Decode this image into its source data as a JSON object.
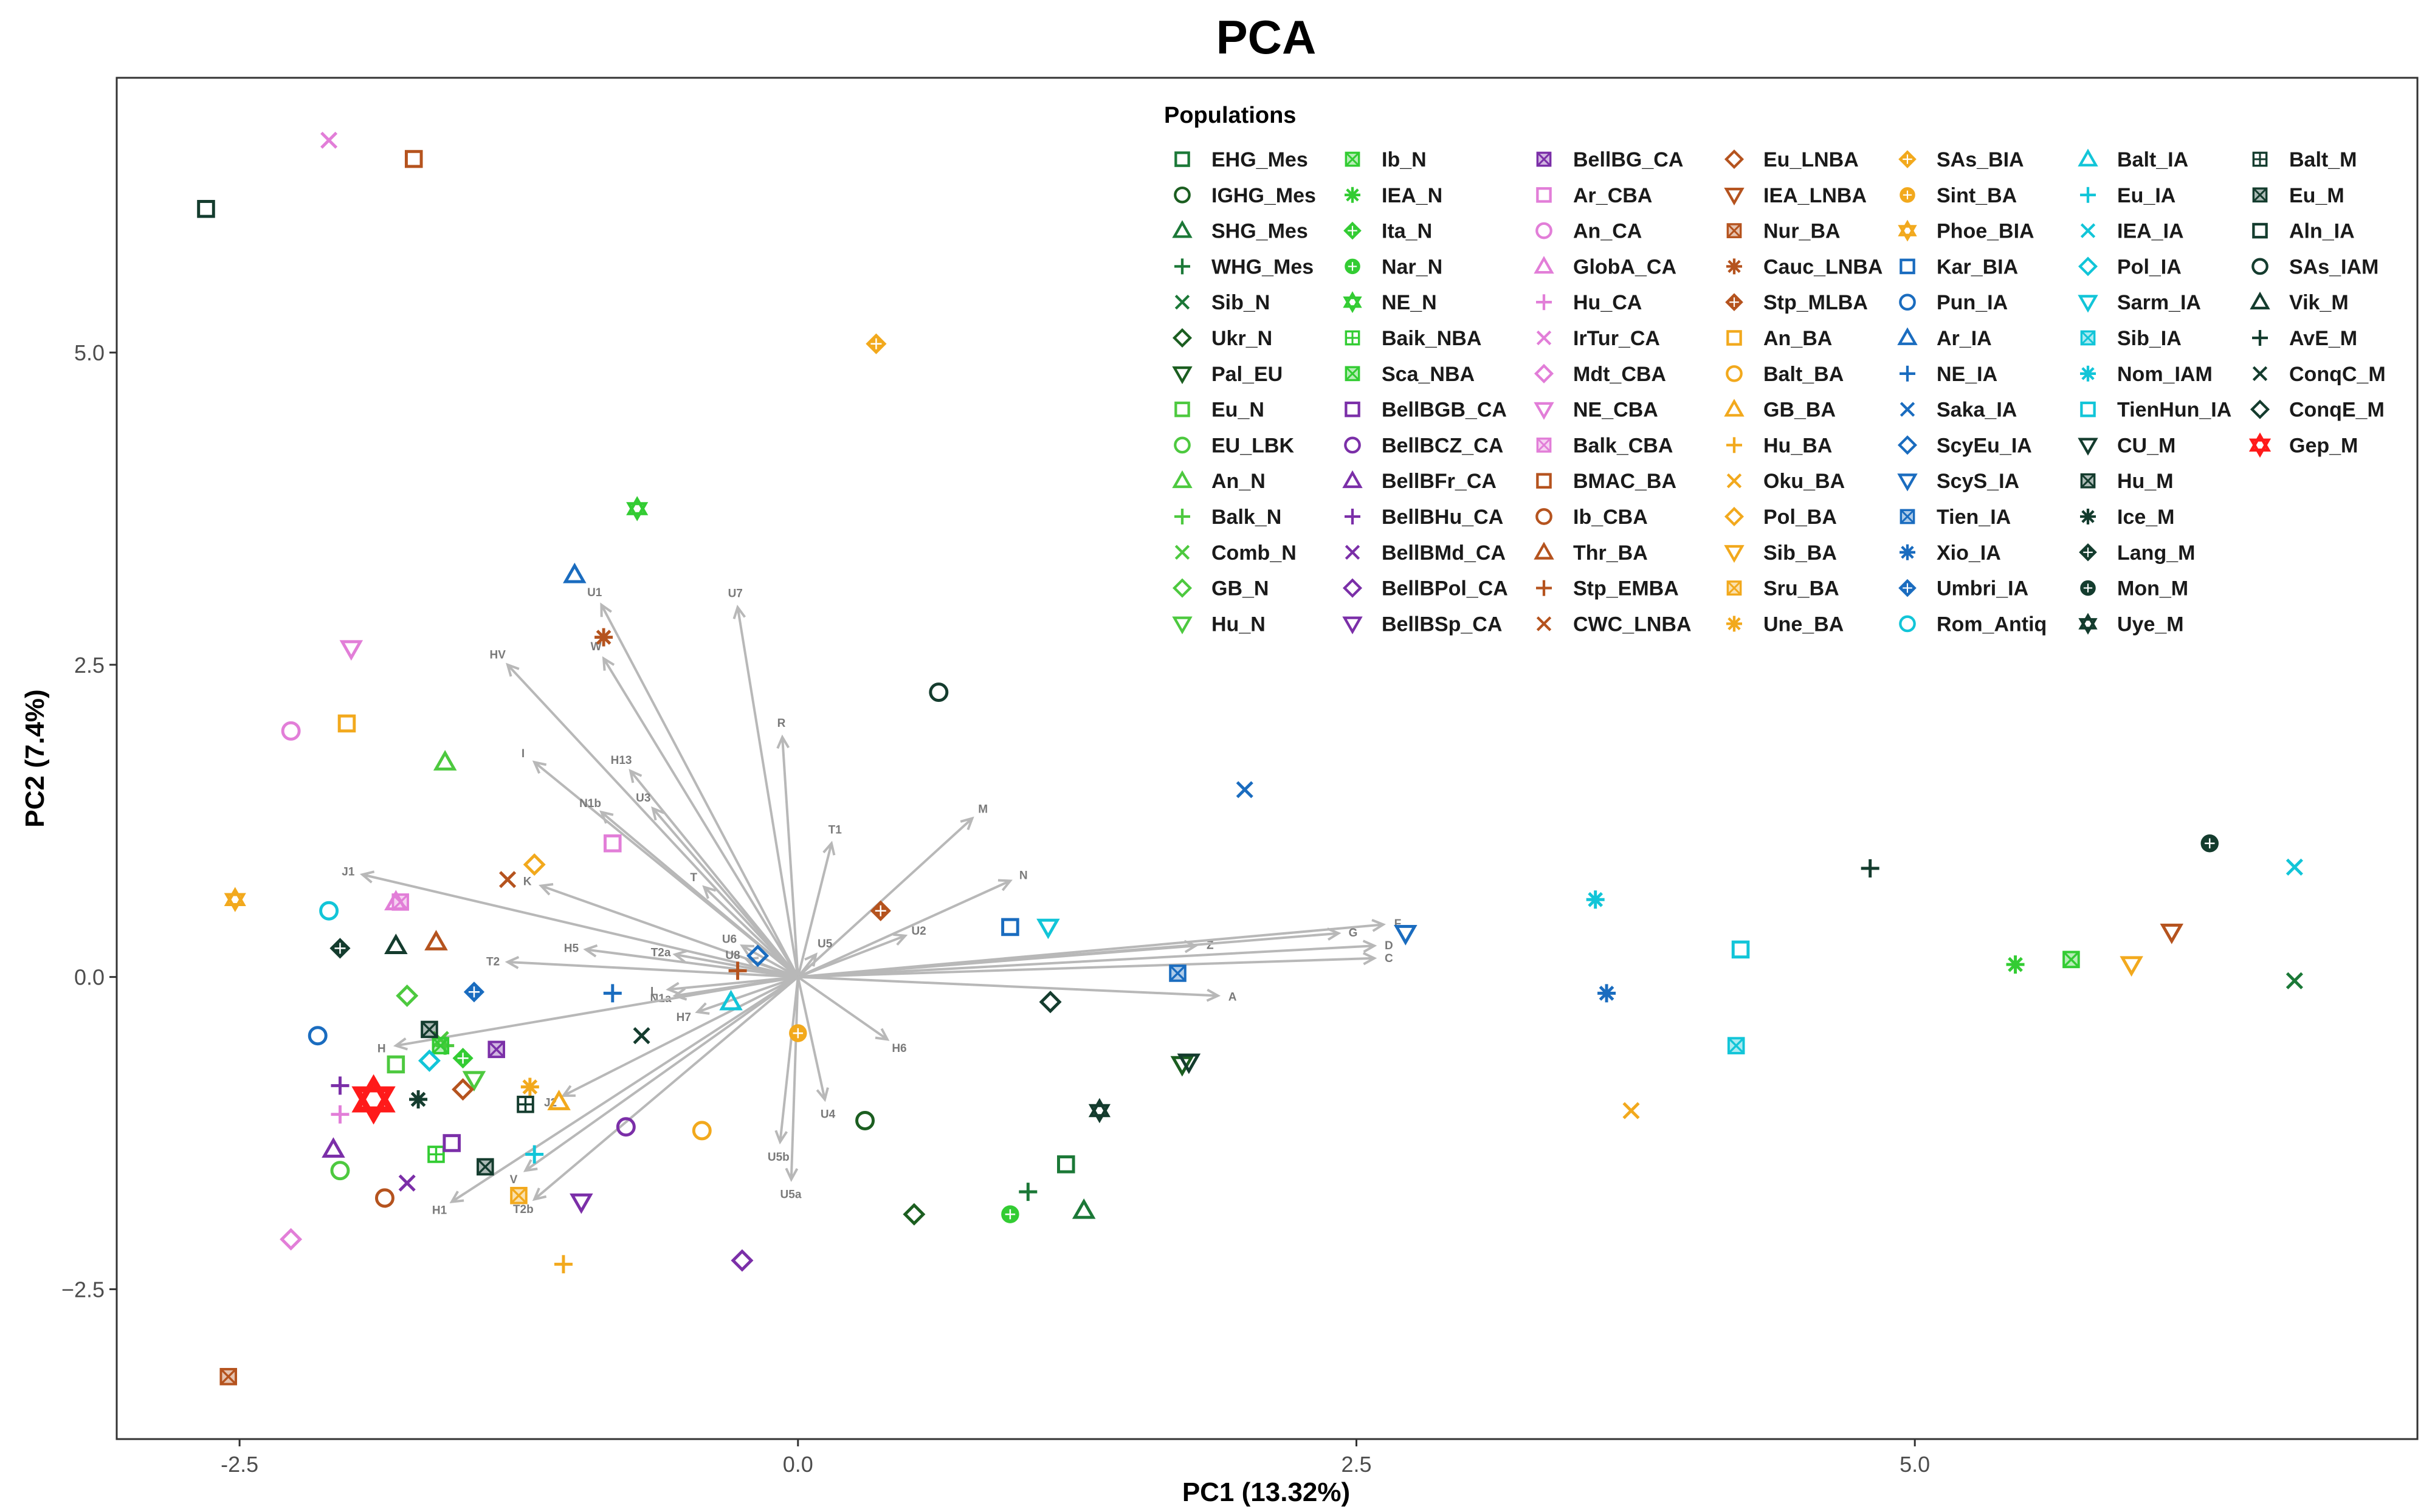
{
  "chart_data": {
    "type": "scatter",
    "title": "PCA",
    "xlabel": "PC1 (13.32%)",
    "ylabel": "PC2 (7.4%)",
    "xlim": [
      -3.05,
      7.25
    ],
    "ylim": [
      -3.7,
      7.2
    ],
    "xticks": [
      -2.5,
      0.0,
      2.5,
      5.0
    ],
    "xtick_labels": [
      "-2.5",
      "0.0",
      "2.5",
      "5.0"
    ],
    "yticks": [
      -2.5,
      0.0,
      2.5,
      5.0
    ],
    "ytick_labels": [
      "−2.5",
      "0.0",
      "2.5",
      "5.0"
    ],
    "legend_title": "Populations",
    "legend_position": "top-right",
    "series": [
      {
        "name": "EHG_Mes",
        "shape": "sq",
        "color": "#1b7837",
        "x": 1.2,
        "y": -1.5
      },
      {
        "name": "IGHG_Mes",
        "shape": "ci",
        "color": "#1b5e20",
        "x": 0.3,
        "y": -1.15
      },
      {
        "name": "SHG_Mes",
        "shape": "tu",
        "color": "#1b7837",
        "x": 1.28,
        "y": -1.87
      },
      {
        "name": "WHG_Mes",
        "shape": "pl",
        "color": "#1b7837",
        "x": 1.03,
        "y": -1.72
      },
      {
        "name": "Sib_N",
        "shape": "x",
        "color": "#1b7837",
        "x": 6.7,
        "y": -0.03
      },
      {
        "name": "Ukr_N",
        "shape": "di",
        "color": "#1b5e20",
        "x": 0.52,
        "y": -1.9
      },
      {
        "name": "Pal_EU",
        "shape": "td",
        "color": "#1b5e20",
        "x": 1.72,
        "y": -0.7
      },
      {
        "name": "Eu_N",
        "shape": "sq",
        "color": "#4dc93f",
        "x": -1.8,
        "y": -0.7
      },
      {
        "name": "EU_LBK",
        "shape": "ci",
        "color": "#4dc93f",
        "x": -2.05,
        "y": -1.55
      },
      {
        "name": "An_N",
        "shape": "tu",
        "color": "#4dc93f",
        "x": -1.58,
        "y": 1.72
      },
      {
        "name": "Balk_N",
        "shape": "pl",
        "color": "#4dc93f",
        "x": -1.58,
        "y": -0.55
      },
      {
        "name": "Comb_N",
        "shape": "x",
        "color": "#4dc93f",
        "x": -1.6,
        "y": -0.5
      },
      {
        "name": "GB_N",
        "shape": "di",
        "color": "#4dc93f",
        "x": -1.75,
        "y": -0.15
      },
      {
        "name": "Hu_N",
        "shape": "td",
        "color": "#4dc93f",
        "x": -1.45,
        "y": -0.82
      },
      {
        "name": "Ib_N",
        "shape": "sx",
        "color": "#33cc33",
        "x": 5.7,
        "y": 0.14
      },
      {
        "name": "IEA_N",
        "shape": "as",
        "color": "#33cc33",
        "x": 5.45,
        "y": 0.1
      },
      {
        "name": "Ita_N",
        "shape": "dd",
        "color": "#33cc33",
        "x": -1.5,
        "y": -0.65
      },
      {
        "name": "Nar_N",
        "shape": "co",
        "color": "#33cc33",
        "x": 0.95,
        "y": -1.9
      },
      {
        "name": "NE_N",
        "shape": "st",
        "color": "#33cc33",
        "x": -0.72,
        "y": 3.75
      },
      {
        "name": "Baik_NBA",
        "shape": "sp",
        "color": "#33cc33",
        "x": -1.62,
        "y": -1.42
      },
      {
        "name": "Sca_NBA",
        "shape": "sx",
        "color": "#33cc33",
        "x": -1.6,
        "y": -0.55
      },
      {
        "name": "BellBGB_CA",
        "shape": "sq",
        "color": "#7b2fa8",
        "x": -1.55,
        "y": -1.33
      },
      {
        "name": "BellBCZ_CA",
        "shape": "ci",
        "color": "#7b2fa8",
        "x": -0.77,
        "y": -1.2
      },
      {
        "name": "BellBFr_CA",
        "shape": "tu",
        "color": "#7b2fa8",
        "x": -2.08,
        "y": -1.38
      },
      {
        "name": "BellBHu_CA",
        "shape": "pl",
        "color": "#7b2fa8",
        "x": -2.05,
        "y": -0.87
      },
      {
        "name": "BellBMd_CA",
        "shape": "x",
        "color": "#7b2fa8",
        "x": -1.75,
        "y": -1.65
      },
      {
        "name": "BellBPol_CA",
        "shape": "di",
        "color": "#7b2fa8",
        "x": -0.25,
        "y": -2.27
      },
      {
        "name": "BellBSp_CA",
        "shape": "td",
        "color": "#7b2fa8",
        "x": -0.97,
        "y": -1.8
      },
      {
        "name": "BellBG_CA",
        "shape": "sx",
        "color": "#7b2fa8",
        "x": -1.35,
        "y": -0.58
      },
      {
        "name": "Ar_CBA",
        "shape": "sq",
        "color": "#e27ed8",
        "x": -0.83,
        "y": 1.07
      },
      {
        "name": "An_CA",
        "shape": "ci",
        "color": "#e27ed8",
        "x": -2.27,
        "y": 1.97
      },
      {
        "name": "GlobA_CA",
        "shape": "tu",
        "color": "#e27ed8",
        "x": -1.8,
        "y": 0.6
      },
      {
        "name": "Hu_CA",
        "shape": "pl",
        "color": "#e27ed8",
        "x": -2.05,
        "y": -1.1
      },
      {
        "name": "IrTur_CA",
        "shape": "x",
        "color": "#e27ed8",
        "x": -2.1,
        "y": 6.7
      },
      {
        "name": "Mdt_CBA",
        "shape": "di",
        "color": "#e27ed8",
        "x": -2.27,
        "y": -2.1
      },
      {
        "name": "NE_CBA",
        "shape": "td",
        "color": "#e27ed8",
        "x": -2.0,
        "y": 2.63
      },
      {
        "name": "Balk_CBA",
        "shape": "sx",
        "color": "#e27ed8",
        "x": -1.78,
        "y": 0.6
      },
      {
        "name": "BMAC_BA",
        "shape": "sq",
        "color": "#b5531e",
        "x": -1.72,
        "y": 6.55
      },
      {
        "name": "Ib_CBA",
        "shape": "ci",
        "color": "#b5531e",
        "x": -1.85,
        "y": -1.77
      },
      {
        "name": "Thr_BA",
        "shape": "tu",
        "color": "#b5531e",
        "x": -1.62,
        "y": 0.28
      },
      {
        "name": "Stp_EMBA",
        "shape": "pl",
        "color": "#b5531e",
        "x": -0.27,
        "y": 0.05
      },
      {
        "name": "CWC_LNBA",
        "shape": "x",
        "color": "#b5531e",
        "x": -1.3,
        "y": 0.78
      },
      {
        "name": "Eu_LNBA",
        "shape": "di",
        "color": "#b5531e",
        "x": -1.5,
        "y": -0.9
      },
      {
        "name": "IEA_LNBA",
        "shape": "td",
        "color": "#b5531e",
        "x": 6.15,
        "y": 0.36
      },
      {
        "name": "Nur_BA",
        "shape": "sx",
        "color": "#b5531e",
        "x": -2.55,
        "y": -3.2
      },
      {
        "name": "Cauc_LNBA",
        "shape": "as",
        "color": "#b5531e",
        "x": -0.87,
        "y": 2.72
      },
      {
        "name": "Stp_MLBA",
        "shape": "dd",
        "color": "#b5531e",
        "x": 0.37,
        "y": 0.53
      },
      {
        "name": "An_BA",
        "shape": "sq",
        "color": "#f2a91d",
        "x": -2.02,
        "y": 2.03
      },
      {
        "name": "Balt_BA",
        "shape": "ci",
        "color": "#f2a91d",
        "x": -0.43,
        "y": -1.23
      },
      {
        "name": "GB_BA",
        "shape": "tu",
        "color": "#f2a91d",
        "x": -1.07,
        "y": -1.0
      },
      {
        "name": "Hu_BA",
        "shape": "pl",
        "color": "#f2a91d",
        "x": -1.05,
        "y": -2.3
      },
      {
        "name": "Oku_BA",
        "shape": "x",
        "color": "#f2a91d",
        "x": 3.73,
        "y": -1.07
      },
      {
        "name": "Pol_BA",
        "shape": "di",
        "color": "#f2a91d",
        "x": -1.18,
        "y": 0.9
      },
      {
        "name": "Sib_BA",
        "shape": "td",
        "color": "#f2a91d",
        "x": 5.97,
        "y": 0.1
      },
      {
        "name": "Sru_BA",
        "shape": "sx",
        "color": "#f2a91d",
        "x": -1.25,
        "y": -1.75
      },
      {
        "name": "Une_BA",
        "shape": "as",
        "color": "#f2a91d",
        "x": -1.2,
        "y": -0.88
      },
      {
        "name": "SAs_BIA",
        "shape": "dd",
        "color": "#f2a91d",
        "x": 0.35,
        "y": 5.07
      },
      {
        "name": "Sint_BA",
        "shape": "co",
        "color": "#f2a91d",
        "x": 0.0,
        "y": -0.45
      },
      {
        "name": "Phoe_BIA",
        "shape": "st",
        "color": "#f2a91d",
        "x": -2.52,
        "y": 0.62
      },
      {
        "name": "Kar_BIA",
        "shape": "sq",
        "color": "#1a6cbf",
        "x": 0.95,
        "y": 0.4
      },
      {
        "name": "Pun_IA",
        "shape": "ci",
        "color": "#1a6cbf",
        "x": -2.15,
        "y": -0.47
      },
      {
        "name": "Ar_IA",
        "shape": "tu",
        "color": "#1a6cbf",
        "x": -1.0,
        "y": 3.22
      },
      {
        "name": "NE_IA",
        "shape": "pl",
        "color": "#1a6cbf",
        "x": -0.83,
        "y": -0.13
      },
      {
        "name": "Saka_IA",
        "shape": "x",
        "color": "#1a6cbf",
        "x": 2.0,
        "y": 1.5
      },
      {
        "name": "ScyEu_IA",
        "shape": "di",
        "color": "#1a6cbf",
        "x": -0.18,
        "y": 0.17
      },
      {
        "name": "ScyS_IA",
        "shape": "td",
        "color": "#1a6cbf",
        "x": 2.72,
        "y": 0.35
      },
      {
        "name": "Tien_IA",
        "shape": "sx",
        "color": "#1a6cbf",
        "x": 1.7,
        "y": 0.03
      },
      {
        "name": "Xio_IA",
        "shape": "as",
        "color": "#1a6cbf",
        "x": 3.62,
        "y": -0.13
      },
      {
        "name": "Umbri_IA",
        "shape": "dd",
        "color": "#1a6cbf",
        "x": -1.45,
        "y": -0.12
      },
      {
        "name": "Rom_Antiq",
        "shape": "ci",
        "color": "#12c5d8",
        "x": -2.1,
        "y": 0.53
      },
      {
        "name": "Balt_IA",
        "shape": "tu",
        "color": "#12c5d8",
        "x": -0.3,
        "y": -0.2
      },
      {
        "name": "Eu_IA",
        "shape": "pl",
        "color": "#12c5d8",
        "x": -1.18,
        "y": -1.42
      },
      {
        "name": "IEA_IA",
        "shape": "x",
        "color": "#12c5d8",
        "x": 6.7,
        "y": 0.88
      },
      {
        "name": "Pol_IA",
        "shape": "di",
        "color": "#12c5d8",
        "x": -1.65,
        "y": -0.67
      },
      {
        "name": "Sarm_IA",
        "shape": "td",
        "color": "#12c5d8",
        "x": 1.12,
        "y": 0.4
      },
      {
        "name": "Sib_IA",
        "shape": "sx",
        "color": "#12c5d8",
        "x": 4.2,
        "y": -0.55
      },
      {
        "name": "Nom_IAM",
        "shape": "as",
        "color": "#12c5d8",
        "x": 3.57,
        "y": 0.62
      },
      {
        "name": "TienHun_IA",
        "shape": "sq",
        "color": "#12c5d8",
        "x": 4.22,
        "y": 0.22
      },
      {
        "name": "CU_M",
        "shape": "td",
        "color": "#143c2e",
        "x": 1.75,
        "y": -0.68
      },
      {
        "name": "Hu_M",
        "shape": "sx",
        "color": "#143c2e",
        "x": -1.65,
        "y": -0.42
      },
      {
        "name": "Ice_M",
        "shape": "as",
        "color": "#143c2e",
        "x": -1.7,
        "y": -0.98
      },
      {
        "name": "Lang_M",
        "shape": "dd",
        "color": "#143c2e",
        "x": -2.05,
        "y": 0.23
      },
      {
        "name": "Mon_M",
        "shape": "co",
        "color": "#143c2e",
        "x": 6.32,
        "y": 1.07
      },
      {
        "name": "Uye_M",
        "shape": "st",
        "color": "#143c2e",
        "x": 1.35,
        "y": -1.07
      },
      {
        "name": "Balt_M",
        "shape": "sp",
        "color": "#143c2e",
        "x": -1.22,
        "y": -1.02
      },
      {
        "name": "Eu_M",
        "shape": "sx",
        "color": "#143c2e",
        "x": -1.4,
        "y": -1.52
      },
      {
        "name": "Aln_IA",
        "shape": "sq",
        "color": "#143c2e",
        "x": -2.65,
        "y": 6.15
      },
      {
        "name": "SAs_IAM",
        "shape": "ci",
        "color": "#143c2e",
        "x": 0.63,
        "y": 2.28
      },
      {
        "name": "Vik_M",
        "shape": "tu",
        "color": "#143c2e",
        "x": -1.8,
        "y": 0.25
      },
      {
        "name": "AvE_M",
        "shape": "pl",
        "color": "#143c2e",
        "x": 4.8,
        "y": 0.87
      },
      {
        "name": "ConqC_M",
        "shape": "x",
        "color": "#143c2e",
        "x": -0.7,
        "y": -0.47
      },
      {
        "name": "ConqE_M",
        "shape": "di",
        "color": "#143c2e",
        "x": 1.13,
        "y": -0.2
      },
      {
        "name": "Gep_M",
        "shape": "st",
        "color": "#ff1a1a",
        "x": -1.9,
        "y": -0.98
      }
    ],
    "vectors": [
      {
        "label": "U1",
        "x": -0.88,
        "y": 2.98
      },
      {
        "label": "U7",
        "x": -0.27,
        "y": 2.96
      },
      {
        "label": "HV",
        "x": -1.3,
        "y": 2.5
      },
      {
        "label": "W",
        "x": -0.87,
        "y": 2.55
      },
      {
        "label": "R",
        "x": -0.07,
        "y": 1.92
      },
      {
        "label": "I",
        "x": -1.18,
        "y": 1.72
      },
      {
        "label": "H13",
        "x": -0.75,
        "y": 1.65
      },
      {
        "label": "N1b",
        "x": -0.88,
        "y": 1.32
      },
      {
        "label": "U3",
        "x": -0.65,
        "y": 1.35
      },
      {
        "label": "T1",
        "x": 0.15,
        "y": 1.07
      },
      {
        "label": "M",
        "x": 0.78,
        "y": 1.27
      },
      {
        "label": "N",
        "x": 0.95,
        "y": 0.77
      },
      {
        "label": "J1",
        "x": -1.95,
        "y": 0.82
      },
      {
        "label": "T",
        "x": -0.42,
        "y": 0.72
      },
      {
        "label": "K",
        "x": -1.15,
        "y": 0.73
      },
      {
        "label": "U2",
        "x": 0.48,
        "y": 0.33
      },
      {
        "label": "U5",
        "x": 0.08,
        "y": 0.18
      },
      {
        "label": "U6",
        "x": -0.25,
        "y": 0.25
      },
      {
        "label": "U8",
        "x": -0.23,
        "y": 0.14
      },
      {
        "label": "H5",
        "x": -0.95,
        "y": 0.22
      },
      {
        "label": "T2a",
        "x": -0.55,
        "y": 0.18
      },
      {
        "label": "T2",
        "x": -1.3,
        "y": 0.12
      },
      {
        "label": "Z",
        "x": 1.78,
        "y": 0.25
      },
      {
        "label": "F",
        "x": 2.62,
        "y": 0.42
      },
      {
        "label": "G",
        "x": 2.42,
        "y": 0.35
      },
      {
        "label": "D",
        "x": 2.58,
        "y": 0.25
      },
      {
        "label": "C",
        "x": 2.58,
        "y": 0.15
      },
      {
        "label": "A",
        "x": 1.88,
        "y": -0.15
      },
      {
        "label": "N1a",
        "x": -0.55,
        "y": -0.15
      },
      {
        "label": "L",
        "x": -0.58,
        "y": -0.1
      },
      {
        "label": "H7",
        "x": -0.45,
        "y": -0.28
      },
      {
        "label": "H6",
        "x": 0.4,
        "y": -0.5
      },
      {
        "label": "H",
        "x": -1.8,
        "y": -0.55
      },
      {
        "label": "J2",
        "x": -1.05,
        "y": -0.95
      },
      {
        "label": "U4",
        "x": 0.12,
        "y": -0.98
      },
      {
        "label": "U5b",
        "x": -0.08,
        "y": -1.32
      },
      {
        "label": "U5a",
        "x": -0.03,
        "y": -1.62
      },
      {
        "label": "V",
        "x": -1.22,
        "y": -1.55
      },
      {
        "label": "T2b",
        "x": -1.18,
        "y": -1.78
      },
      {
        "label": "H1",
        "x": -1.55,
        "y": -1.8
      }
    ]
  }
}
